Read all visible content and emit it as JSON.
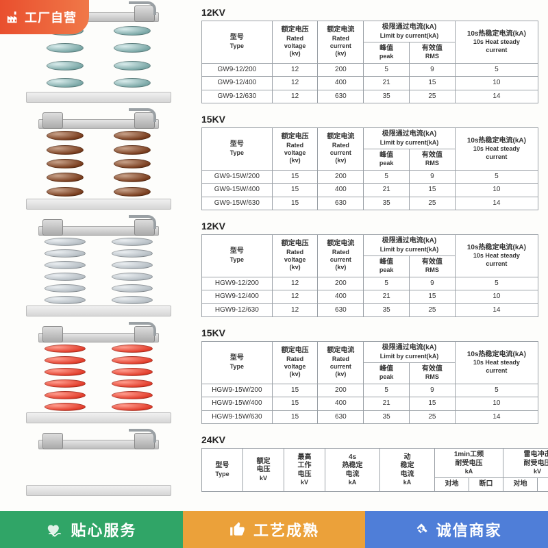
{
  "badge_factory": "工厂自营",
  "headers_std": {
    "type_cn": "型号",
    "type_en": "Type",
    "volt_cn": "额定电压",
    "volt_en1": "Rated",
    "volt_en2": "voltage",
    "volt_unit": "(kv)",
    "curr_cn": "额定电流",
    "curr_en1": "Rated",
    "curr_en2": "current",
    "curr_unit": "(kv)",
    "limit_cn": "极限通过电流(kA)",
    "limit_en": "Limit by current(kA)",
    "peak_cn": "峰值",
    "peak_en": "peak",
    "rms_cn": "有效值",
    "rms_en": "RMS",
    "heat_cn": "10s热稳定电流(kA)",
    "heat_en1": "10s Heat steady",
    "heat_en2": "current"
  },
  "headers_24": {
    "type_cn": "型号",
    "type_en": "Type",
    "rated_cn": "额定",
    "rated_sub": "电压",
    "rated_unit": "kV",
    "max_cn": "最高",
    "max_sub": "工作",
    "max_sub2": "电压",
    "max_unit": "kV",
    "heat4s_top": "4s",
    "heat4s_cn": "热稳定",
    "heat4s_sub": "电流",
    "heat4s_unit": "kA",
    "dyn_cn": "动",
    "dyn_sub": "稳定",
    "dyn_sub2": "电流",
    "dyn_unit": "kA",
    "pf1_top": "1min工频",
    "pf1_cn": "耐受电压",
    "pf1_unit": "kA",
    "lt_cn": "雷电冲击",
    "lt_sub": "耐受电压",
    "lt_unit": "kV",
    "dui_di": "对地",
    "duan_kou": "断口"
  },
  "sections": [
    {
      "title": "12KV",
      "insulator_color": "teal",
      "discs": 4,
      "rows": [
        {
          "type": "GW9-12/200",
          "v": "12",
          "c": "200",
          "p": "5",
          "r": "9",
          "h": "5"
        },
        {
          "type": "GW9-12/400",
          "v": "12",
          "c": "400",
          "p": "21",
          "r": "15",
          "h": "10"
        },
        {
          "type": "GW9-12/630",
          "v": "12",
          "c": "630",
          "p": "35",
          "r": "25",
          "h": "14"
        }
      ]
    },
    {
      "title": "15KV",
      "insulator_color": "brown",
      "discs": 5,
      "rows": [
        {
          "type": "GW9-15W/200",
          "v": "15",
          "c": "200",
          "p": "5",
          "r": "9",
          "h": "5"
        },
        {
          "type": "GW9-15W/400",
          "v": "15",
          "c": "400",
          "p": "21",
          "r": "15",
          "h": "10"
        },
        {
          "type": "GW9-15W/630",
          "v": "15",
          "c": "630",
          "p": "35",
          "r": "25",
          "h": "14"
        }
      ]
    },
    {
      "title": "12KV",
      "insulator_color": "greyf",
      "discs": 6,
      "rows": [
        {
          "type": "HGW9-12/200",
          "v": "12",
          "c": "200",
          "p": "5",
          "r": "9",
          "h": "5"
        },
        {
          "type": "HGW9-12/400",
          "v": "12",
          "c": "400",
          "p": "21",
          "r": "15",
          "h": "10"
        },
        {
          "type": "HGW9-12/630",
          "v": "12",
          "c": "630",
          "p": "35",
          "r": "25",
          "h": "14"
        }
      ]
    },
    {
      "title": "15KV",
      "insulator_color": "red",
      "discs": 6,
      "rows": [
        {
          "type": "HGW9-15W/200",
          "v": "15",
          "c": "200",
          "p": "5",
          "r": "9",
          "h": "5"
        },
        {
          "type": "HGW9-15W/400",
          "v": "15",
          "c": "400",
          "p": "21",
          "r": "15",
          "h": "10"
        },
        {
          "type": "HGW9-15W/630",
          "v": "15",
          "c": "630",
          "p": "35",
          "r": "25",
          "h": "14"
        }
      ]
    }
  ],
  "section_24": {
    "title": "24KV"
  },
  "footer": {
    "seg1": "贴心服务",
    "seg2": "工艺成熟",
    "seg3": "诚信商家"
  },
  "colors": {
    "badge_bg_start": "#e94f2e",
    "badge_bg_end": "#f07848",
    "seg1_bg": "#30a567",
    "seg2_bg": "#eba13a",
    "seg3_bg": "#4f7ed8",
    "table_border": "#9aa0a6"
  }
}
